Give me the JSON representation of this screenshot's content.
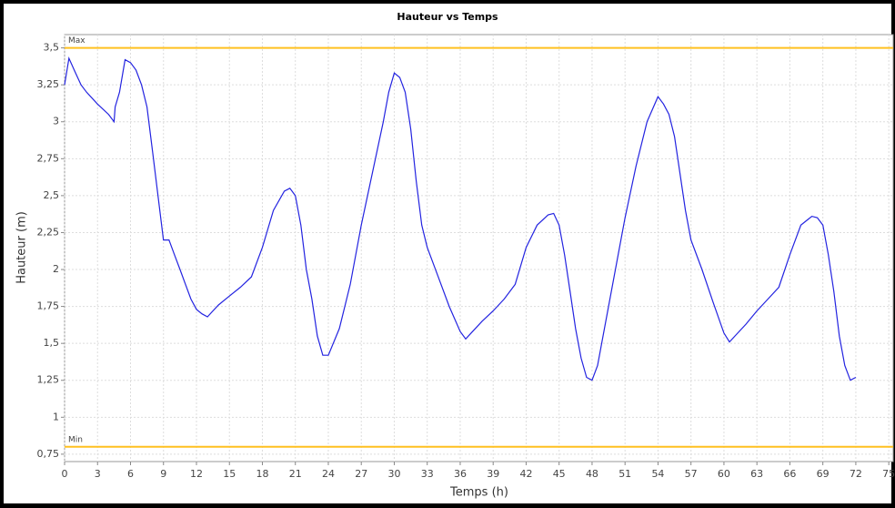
{
  "chart_data": {
    "type": "line",
    "title": "Hauteur vs Temps",
    "x_label": "Temps (h)",
    "y_label": "Hauteur (m)",
    "x": [
      0,
      0.4,
      1,
      1.5,
      2,
      3,
      4,
      4.5,
      4.6,
      5,
      5.5,
      6,
      6.5,
      7,
      7.5,
      8,
      8.5,
      9,
      9.5,
      10,
      10.5,
      11,
      11.5,
      12,
      12.5,
      13,
      13.5,
      14,
      15,
      16,
      17,
      18,
      19,
      20,
      20.5,
      21,
      21.5,
      22,
      22.5,
      23,
      23.5,
      24,
      25,
      26,
      27,
      28,
      29,
      29.5,
      30,
      30.5,
      31,
      31.5,
      32,
      32.5,
      33,
      34,
      35,
      36,
      36.5,
      37,
      38,
      39,
      40,
      41,
      42,
      43,
      44,
      44.5,
      45,
      45.5,
      46,
      46.5,
      47,
      47.5,
      48,
      48.5,
      49,
      50,
      51,
      52,
      53,
      54,
      54.5,
      55,
      55.5,
      56,
      56.5,
      57,
      58,
      59,
      60,
      60.5,
      61,
      62,
      63,
      64,
      65,
      66,
      67,
      68,
      68.5,
      69,
      69.5,
      70,
      70.5,
      71,
      71.5,
      72
    ],
    "series": [
      {
        "name": "Hauteur",
        "color": "#2323e0",
        "values": [
          3.25,
          3.43,
          3.33,
          3.25,
          3.2,
          3.12,
          3.05,
          3.0,
          3.1,
          3.2,
          3.42,
          3.4,
          3.35,
          3.25,
          3.1,
          2.8,
          2.5,
          2.2,
          2.2,
          2.1,
          2.0,
          1.9,
          1.8,
          1.73,
          1.7,
          1.68,
          1.72,
          1.76,
          1.82,
          1.88,
          1.95,
          2.15,
          2.4,
          2.53,
          2.55,
          2.5,
          2.3,
          2.0,
          1.8,
          1.55,
          1.42,
          1.42,
          1.6,
          1.9,
          2.3,
          2.65,
          3.0,
          3.2,
          3.33,
          3.3,
          3.2,
          2.95,
          2.6,
          2.3,
          2.15,
          1.95,
          1.75,
          1.58,
          1.53,
          1.57,
          1.65,
          1.72,
          1.8,
          1.9,
          2.15,
          2.3,
          2.37,
          2.38,
          2.3,
          2.1,
          1.85,
          1.6,
          1.4,
          1.27,
          1.25,
          1.35,
          1.55,
          1.95,
          2.35,
          2.7,
          3.0,
          3.17,
          3.12,
          3.05,
          2.9,
          2.65,
          2.4,
          2.2,
          2.0,
          1.78,
          1.57,
          1.51,
          1.55,
          1.63,
          1.72,
          1.8,
          1.88,
          2.1,
          2.3,
          2.36,
          2.35,
          2.3,
          2.1,
          1.85,
          1.55,
          1.35,
          1.25,
          1.27
        ]
      }
    ],
    "xlim": [
      0,
      75.4
    ],
    "ylim": [
      0.7,
      3.59
    ],
    "xticks": [
      0,
      3,
      6,
      9,
      12,
      15,
      18,
      21,
      24,
      27,
      30,
      33,
      36,
      39,
      42,
      45,
      48,
      51,
      54,
      57,
      60,
      63,
      66,
      69,
      72,
      75
    ],
    "yticks": [
      {
        "value": 0.75,
        "label": "0,75"
      },
      1,
      {
        "value": 1.25,
        "label": "1,25"
      },
      {
        "value": 1.5,
        "label": "1,5"
      },
      {
        "value": 1.75,
        "label": "1,75"
      },
      2,
      {
        "value": 2.25,
        "label": "2,25"
      },
      {
        "value": 2.5,
        "label": "2,5"
      },
      {
        "value": 2.75,
        "label": "2,75"
      },
      3,
      {
        "value": 3.25,
        "label": "3,25"
      },
      {
        "value": 3.5,
        "label": "3,5"
      }
    ],
    "grid": true,
    "markers": [
      {
        "label": "Max",
        "value": 3.5,
        "color": "#ffc020"
      },
      {
        "label": "Min",
        "value": 0.8,
        "color": "#ffc020"
      }
    ]
  }
}
